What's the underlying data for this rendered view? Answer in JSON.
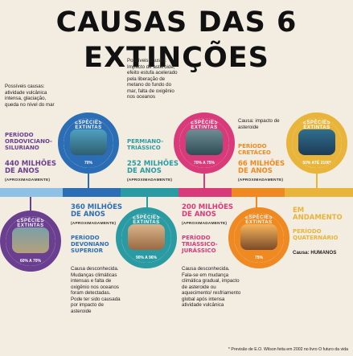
{
  "title": "CAUSAS DAS 6 EXTINÇÕES",
  "badge_label": "ESPÉCIES EXTINTAS",
  "approx_label": "(APROXIMADAMENTE)",
  "colors": {
    "purple": "#6a3f8f",
    "blue": "#2c6eb5",
    "teal": "#2a9ba2",
    "pink": "#d93a7a",
    "orange": "#ef8a22",
    "gold": "#e8b43a",
    "light_blue": "#8fc1e6"
  },
  "events": [
    {
      "id": "ordoviciano",
      "pct": "60% A 70%",
      "period": "PERÍODO ORDOVICIANO-SILURIANO",
      "mya": "440 MILHÕES DE ANOS",
      "cause": "Possíveis causas: atividade vulcânica intensa, glaciação, queda no nível do mar"
    },
    {
      "id": "devoniano",
      "pct": "70%",
      "period": "PERÍODO DEVONIANO SUPERIOR",
      "mya": "360 MILHÕES DE ANOS",
      "cause": "Causa desconhecida. Mudanças climáticas intensas e falta de oxigênio nos oceanos foram detectadas. Pode ter sido causada por impacto de asteroide"
    },
    {
      "id": "permiano",
      "pct": "90% A 96%",
      "period": "PERMIANO-TRIÁSSICO",
      "mya": "252 MILHÕES DE ANOS",
      "cause": "Possíveis causas: Impacto de asteroide, efeito estufa acelerado pela liberação de metano do fundo do mar, falta de oxigênio nos oceanos"
    },
    {
      "id": "triassico",
      "pct": "70% A 75%",
      "period": "PERÍODO TRIÁSSICO-JURÁSSICO",
      "mya": "200 MILHÕES DE ANOS",
      "cause": "Causa desconhecida. Fala-se em mudança climática gradual, impacto de asteroide ou aquecimento/ resfriamento global após intensa atividade vulcânica"
    },
    {
      "id": "cretaceo",
      "pct": "75%",
      "period": "PERÍODO CRETÁCEO",
      "mya": "66 MILHÕES DE ANOS",
      "cause": "Causa: impacto de asteroide"
    },
    {
      "id": "quaternario",
      "pct": "50% ATÉ 2100*",
      "period": "PERÍODO QUATERNÁRIO",
      "mya": "EM ANDAMENTO",
      "cause": "Causa: HUMANOS"
    }
  ],
  "footnote": "* Previsão de E.O. Wilson feita em 2002 no livro O futuro da vida"
}
